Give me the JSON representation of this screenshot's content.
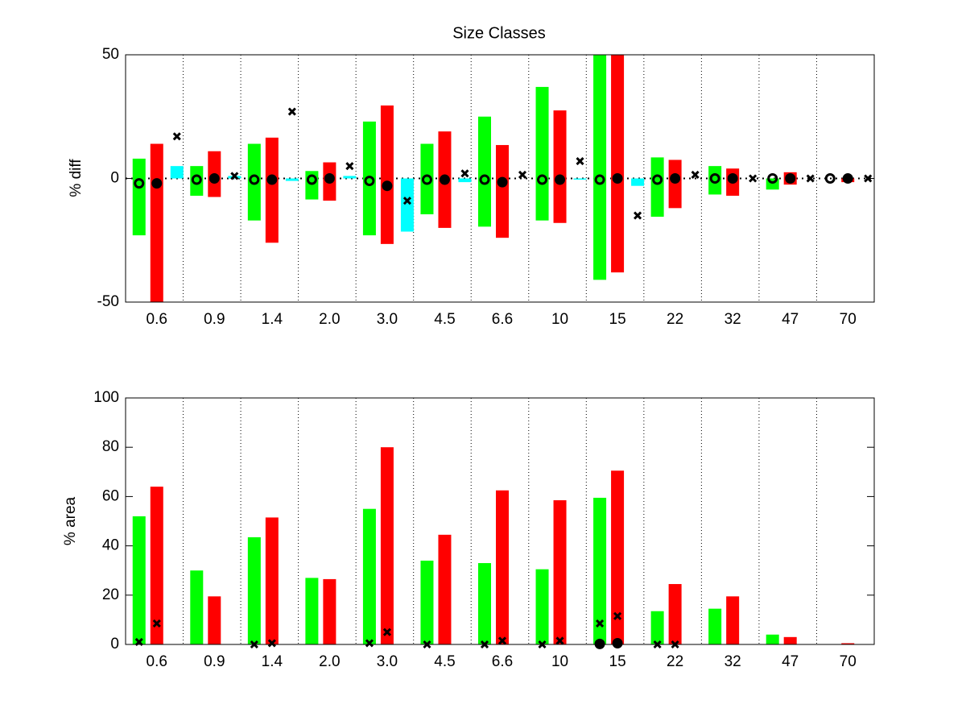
{
  "chart_data": [
    {
      "type": "range-bar",
      "title": "Size Classes",
      "ylabel": "% diff",
      "categories": [
        "0.6",
        "0.9",
        "1.4",
        "2.0",
        "3.0",
        "4.5",
        "6.6",
        "10",
        "15",
        "22",
        "32",
        "47",
        "70"
      ],
      "ylim": [
        -50,
        50
      ],
      "yticks": [
        -50,
        0,
        50
      ],
      "ranges": [
        {
          "color": "#00ff00",
          "low": [
            -23,
            -7,
            -17,
            -8.5,
            -23,
            -14.5,
            -19.5,
            -17,
            -41,
            -15.5,
            -6.5,
            -4.5,
            0
          ],
          "high": [
            8,
            5,
            14,
            3,
            23,
            14,
            25,
            37,
            50,
            8.5,
            5,
            0,
            0
          ]
        },
        {
          "color": "#ff0000",
          "low": [
            -50,
            -7.5,
            -26,
            -9,
            -26.5,
            -20,
            -24,
            -18,
            -38,
            -12,
            -7,
            -2.5,
            -1.5
          ],
          "high": [
            14,
            11,
            16.5,
            6.5,
            29.5,
            19,
            13.5,
            27.5,
            50,
            7.5,
            4,
            2.5,
            0
          ]
        }
      ],
      "bars": [
        {
          "color": "#00ffff",
          "values": [
            5,
            1,
            -1,
            1,
            -21.5,
            -1.5,
            0,
            -0.5,
            -3,
            0,
            0,
            0,
            0
          ]
        }
      ],
      "markers": [
        {
          "symbol": "o",
          "filled": false,
          "values": [
            -2,
            -0.5,
            -0.5,
            -0.5,
            -1,
            -0.5,
            -0.5,
            -0.5,
            -0.5,
            -0.5,
            0,
            0,
            0
          ]
        },
        {
          "symbol": "o",
          "filled": true,
          "values": [
            -2,
            0,
            -0.5,
            0,
            -3,
            -0.5,
            -1.5,
            -0.5,
            0,
            0,
            0,
            0,
            0
          ]
        },
        {
          "symbol": "x",
          "values": [
            17,
            1,
            27,
            5,
            -9,
            2,
            1.5,
            7,
            -15,
            1.5,
            0,
            0,
            0
          ]
        }
      ]
    },
    {
      "type": "bar",
      "ylabel": "% area",
      "categories": [
        "0.6",
        "0.9",
        "1.4",
        "2.0",
        "3.0",
        "4.5",
        "6.6",
        "10",
        "15",
        "22",
        "32",
        "47",
        "70"
      ],
      "ylim": [
        0,
        100
      ],
      "yticks": [
        0,
        20,
        40,
        60,
        80,
        100
      ],
      "series": [
        {
          "color": "#00ff00",
          "values": [
            52,
            30,
            43.5,
            27,
            55,
            34,
            33,
            30.5,
            59.5,
            13.5,
            14.5,
            4,
            0
          ]
        },
        {
          "color": "#ff0000",
          "values": [
            64,
            19.5,
            51.5,
            26.5,
            80,
            44.5,
            62.5,
            58.5,
            70.5,
            24.5,
            19.5,
            3,
            0.5
          ]
        }
      ],
      "markers": [
        {
          "symbol": "x",
          "values": [
            1,
            null,
            0,
            null,
            0.5,
            0,
            0,
            0,
            8.5,
            0,
            null,
            null,
            null
          ]
        },
        {
          "symbol": "x",
          "values": [
            8.5,
            null,
            0.5,
            null,
            5,
            null,
            1.5,
            1.5,
            11.5,
            0,
            null,
            null,
            null
          ]
        },
        {
          "symbol": "o",
          "filled": true,
          "values": [
            null,
            null,
            null,
            null,
            null,
            null,
            null,
            null,
            0.2,
            null,
            null,
            null,
            null
          ]
        },
        {
          "symbol": "o",
          "filled": true,
          "values": [
            null,
            null,
            null,
            null,
            null,
            null,
            null,
            null,
            0.5,
            null,
            null,
            null,
            null
          ]
        }
      ]
    }
  ]
}
